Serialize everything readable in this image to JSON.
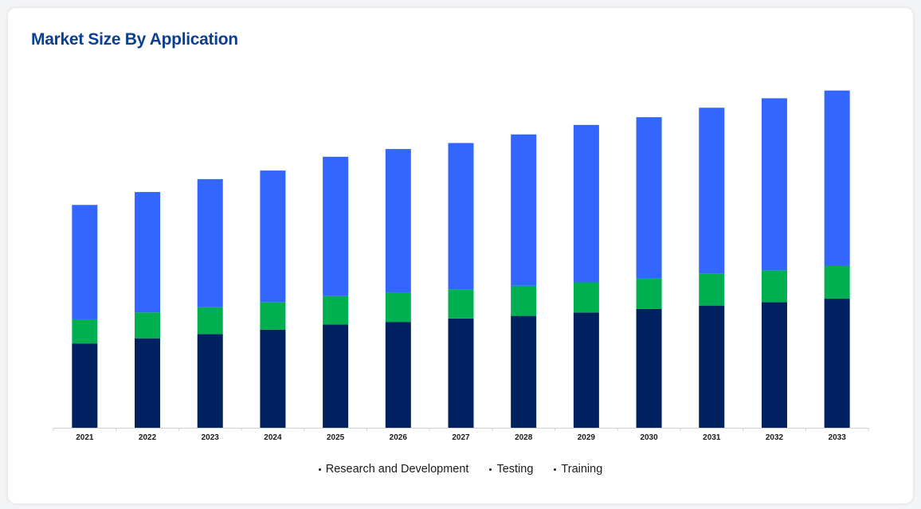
{
  "card": {
    "title": "Market Size By Application",
    "title_color": "#0d3f8f"
  },
  "chart_data": {
    "type": "bar",
    "stacked": true,
    "categories": [
      "2021",
      "2022",
      "2023",
      "2024",
      "2025",
      "2026",
      "2027",
      "2028",
      "2029",
      "2030",
      "2031",
      "2032",
      "2033"
    ],
    "series": [
      {
        "name": "Research and Development",
        "color": "#002060",
        "values": [
          9.8,
          10.4,
          10.9,
          11.4,
          12.0,
          12.3,
          12.7,
          13.0,
          13.4,
          13.8,
          14.2,
          14.6,
          15.0
        ]
      },
      {
        "name": "Testing",
        "color": "#00b050",
        "values": [
          2.8,
          3.0,
          3.1,
          3.2,
          3.3,
          3.4,
          3.4,
          3.5,
          3.5,
          3.6,
          3.7,
          3.7,
          3.8
        ]
      },
      {
        "name": "Training",
        "color": "#3366ff",
        "values": [
          13.3,
          14.0,
          14.9,
          15.3,
          16.2,
          16.7,
          17.0,
          17.6,
          18.3,
          18.7,
          19.3,
          20.0,
          20.4
        ]
      }
    ],
    "title": "Market Size By Application",
    "xlabel": "",
    "ylabel": "",
    "ylim": [
      0,
      40
    ],
    "grid": false,
    "legend_position": "bottom-center"
  },
  "legend": {
    "items": [
      "Research and Development",
      "Testing",
      "Training"
    ]
  }
}
